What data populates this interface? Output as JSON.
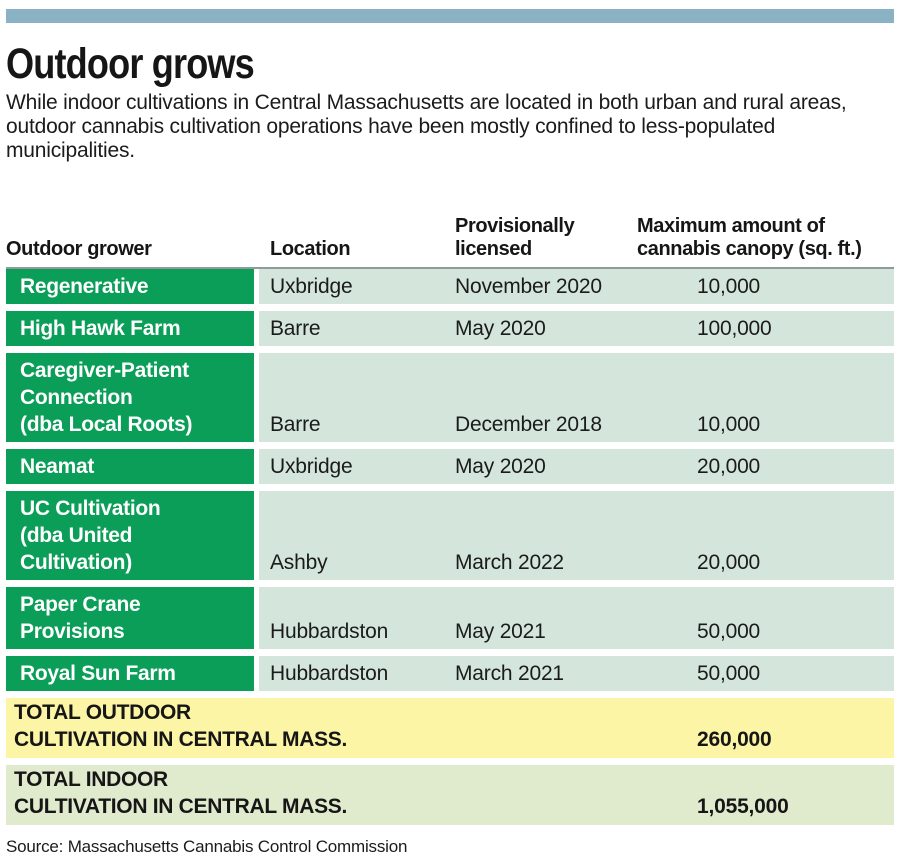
{
  "chart_data": {
    "type": "table",
    "title": "Outdoor grows",
    "subtitle": "While indoor cultivations in Central Massachusetts are located in both urban and rural areas, outdoor cannabis cultivation operations have been mostly confined to less-populated municipalities.",
    "columns": [
      "Outdoor grower",
      "Location",
      "Provisionally licensed",
      "Maximum amount of cannabis canopy (sq. ft.)"
    ],
    "column_labels_display": {
      "grower": "Outdoor grower",
      "location": "Location",
      "licensed": "Provisionally\nlicensed",
      "canopy": "Maximum amount of\ncannabis canopy (sq. ft.)"
    },
    "rows": [
      {
        "grower": "Regenerative",
        "location": "Uxbridge",
        "licensed": "November 2020",
        "canopy_sqft": "10,000"
      },
      {
        "grower": "High Hawk Farm",
        "location": "Barre",
        "licensed": "May 2020",
        "canopy_sqft": "100,000"
      },
      {
        "grower": "Caregiver-Patient\nConnection\n(dba Local Roots)",
        "location": "Barre",
        "licensed": "December 2018",
        "canopy_sqft": "10,000"
      },
      {
        "grower": "Neamat",
        "location": "Uxbridge",
        "licensed": "May 2020",
        "canopy_sqft": "20,000"
      },
      {
        "grower": "UC Cultivation\n(dba United\nCultivation)",
        "location": "Ashby",
        "licensed": "March 2022",
        "canopy_sqft": "20,000"
      },
      {
        "grower": "Paper Crane\nProvisions",
        "location": "Hubbardston",
        "licensed": "May 2021",
        "canopy_sqft": "50,000"
      },
      {
        "grower": "Royal Sun Farm",
        "location": "Hubbardston",
        "licensed": "March 2021",
        "canopy_sqft": "50,000"
      }
    ],
    "totals": [
      {
        "label": "TOTAL OUTDOOR\nCULTIVATION IN CENTRAL MASS.",
        "value": "260,000"
      },
      {
        "label": "TOTAL INDOOR\nCULTIVATION IN CENTRAL MASS.",
        "value": "1,055,000"
      }
    ],
    "source": "Source: Massachusetts Cannabis Control Commission",
    "colors": {
      "top_bar": "#8ab1c4",
      "grower_cell_green": "#0b9e58",
      "data_cell_light_green": "#d4e6db",
      "total_outdoor_yellow": "#fbf5a5",
      "total_indoor_green": "#e0ebce",
      "hairline_gray": "#8f9b98",
      "text": "#1b1b1b"
    }
  }
}
